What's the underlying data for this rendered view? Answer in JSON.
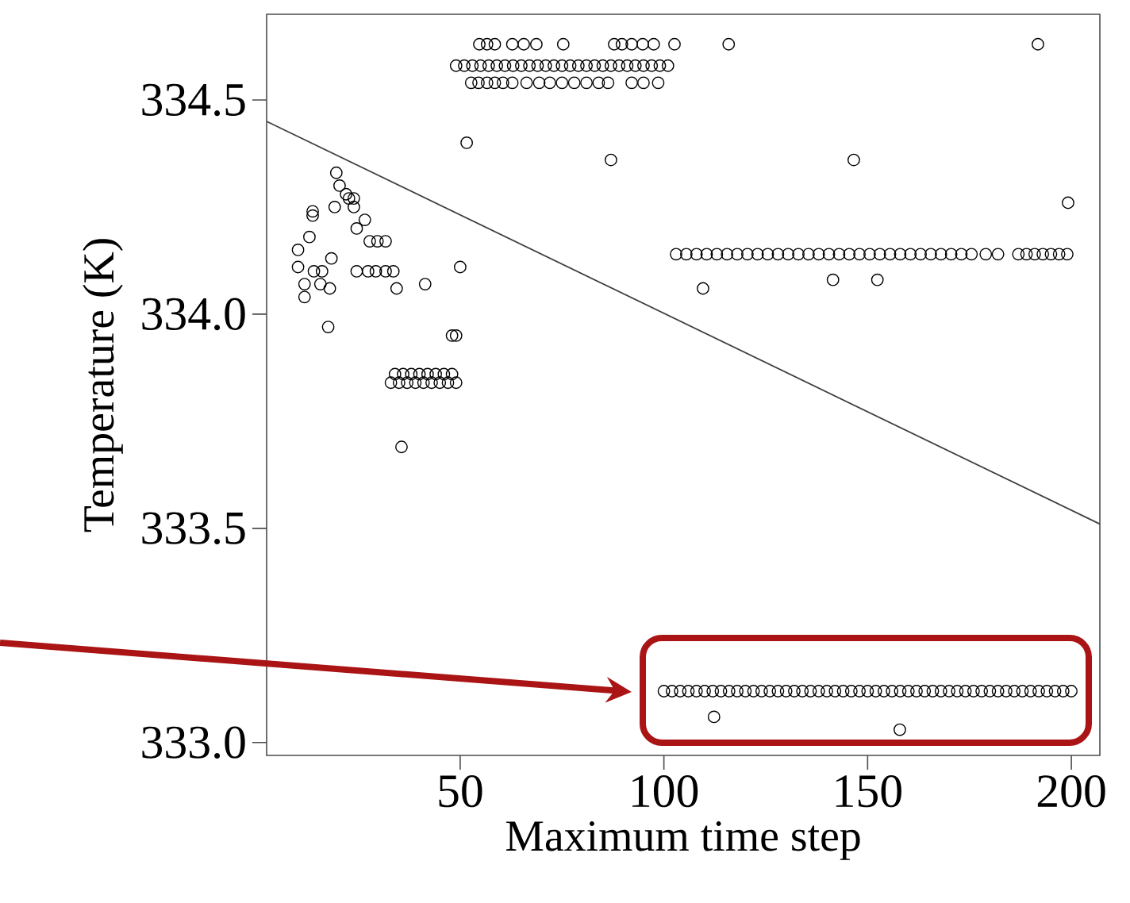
{
  "chart_data": {
    "type": "scatter",
    "xlabel": "Maximum time step",
    "ylabel": "Temperature (K)",
    "xlim": [
      2.5,
      207
    ],
    "ylim": [
      332.97,
      334.7
    ],
    "xticks": [
      50,
      100,
      150,
      200
    ],
    "yticks": [
      {
        "value": 333,
        "label": "333.0"
      },
      {
        "value": 333.5,
        "label": "333.5"
      },
      {
        "value": 334,
        "label": "334.0"
      },
      {
        "value": 334.5,
        "label": "334.5"
      }
    ],
    "marker": "circle",
    "grid": false,
    "series": [
      {
        "color": "#000000",
        "x": [
          54.7,
          56.6,
          58.5,
          62.8,
          65.6,
          68.7,
          75.3,
          87.8,
          89.7,
          92.1,
          94.8,
          97.5,
          102.6,
          115.9,
          191.8,
          49,
          51,
          53,
          55,
          57,
          59,
          61,
          63,
          65,
          67,
          69,
          71,
          73,
          75,
          77,
          79,
          81,
          83,
          85,
          87,
          89,
          91,
          93,
          95,
          97,
          99,
          101,
          52.7,
          54.5,
          56.6,
          58.5,
          60.5,
          62.8,
          66.3,
          69.4,
          72,
          75,
          78,
          81,
          84,
          86.3,
          92.1,
          95,
          98.6,
          51.6,
          87,
          146.6,
          199.2,
          109.6,
          141.5,
          152.4,
          103,
          105.5,
          108,
          110.5,
          113,
          115.5,
          118,
          120.5,
          123,
          125.5,
          128,
          130.5,
          133,
          135.5,
          138,
          140.5,
          143,
          145.5,
          148,
          150.5,
          153,
          155.5,
          158,
          160.5,
          163,
          165.5,
          168,
          170.5,
          173,
          175.5,
          179,
          182,
          187,
          189,
          191,
          193,
          195,
          197,
          199,
          100,
          102,
          104,
          106,
          108,
          110,
          112,
          114,
          116,
          118,
          120,
          122,
          124,
          126,
          128,
          130,
          132,
          134,
          136,
          138,
          140,
          142,
          144,
          146,
          148,
          150,
          152,
          154,
          156,
          158,
          160,
          162,
          164,
          166,
          168,
          170,
          172,
          174,
          176,
          178,
          180,
          182,
          184,
          186,
          188,
          190,
          192,
          194,
          196,
          198,
          200,
          112.3,
          157.9,
          19.6,
          20.4,
          22,
          22.7,
          23.9,
          23.9,
          19.2,
          13.8,
          13.8,
          26.6,
          24.6,
          13,
          27.8,
          29.7,
          31.7,
          10.2,
          10.2,
          18.4,
          14.1,
          16.1,
          24.6,
          27.4,
          29.3,
          31.7,
          33.6,
          11.8,
          15.7,
          18,
          11.8,
          34.4,
          41.4,
          50,
          17.6,
          48,
          49,
          34,
          36,
          38,
          40,
          42,
          44,
          46,
          48,
          33,
          35,
          37,
          39,
          41,
          43,
          45,
          47,
          49,
          35.6
        ],
        "values": [
          334.63,
          334.63,
          334.63,
          334.63,
          334.63,
          334.63,
          334.63,
          334.63,
          334.63,
          334.63,
          334.63,
          334.63,
          334.63,
          334.63,
          334.63,
          334.58,
          334.58,
          334.58,
          334.58,
          334.58,
          334.58,
          334.58,
          334.58,
          334.58,
          334.58,
          334.58,
          334.58,
          334.58,
          334.58,
          334.58,
          334.58,
          334.58,
          334.58,
          334.58,
          334.58,
          334.58,
          334.58,
          334.58,
          334.58,
          334.58,
          334.58,
          334.58,
          334.54,
          334.54,
          334.54,
          334.54,
          334.54,
          334.54,
          334.54,
          334.54,
          334.54,
          334.54,
          334.54,
          334.54,
          334.54,
          334.54,
          334.54,
          334.54,
          334.54,
          334.4,
          334.36,
          334.36,
          334.26,
          334.06,
          334.08,
          334.08,
          334.14,
          334.14,
          334.14,
          334.14,
          334.14,
          334.14,
          334.14,
          334.14,
          334.14,
          334.14,
          334.14,
          334.14,
          334.14,
          334.14,
          334.14,
          334.14,
          334.14,
          334.14,
          334.14,
          334.14,
          334.14,
          334.14,
          334.14,
          334.14,
          334.14,
          334.14,
          334.14,
          334.14,
          334.14,
          334.14,
          334.14,
          334.14,
          334.14,
          334.14,
          334.14,
          334.14,
          334.14,
          334.14,
          334.14,
          333.12,
          333.12,
          333.12,
          333.12,
          333.12,
          333.12,
          333.12,
          333.12,
          333.12,
          333.12,
          333.12,
          333.12,
          333.12,
          333.12,
          333.12,
          333.12,
          333.12,
          333.12,
          333.12,
          333.12,
          333.12,
          333.12,
          333.12,
          333.12,
          333.12,
          333.12,
          333.12,
          333.12,
          333.12,
          333.12,
          333.12,
          333.12,
          333.12,
          333.12,
          333.12,
          333.12,
          333.12,
          333.12,
          333.12,
          333.12,
          333.12,
          333.12,
          333.12,
          333.12,
          333.12,
          333.12,
          333.12,
          333.12,
          333.12,
          333.12,
          333.12,
          333.06,
          333.03,
          334.33,
          334.3,
          334.28,
          334.27,
          334.27,
          334.25,
          334.25,
          334.24,
          334.23,
          334.22,
          334.2,
          334.18,
          334.17,
          334.17,
          334.17,
          334.15,
          334.11,
          334.13,
          334.1,
          334.1,
          334.1,
          334.1,
          334.1,
          334.1,
          334.1,
          334.07,
          334.07,
          334.06,
          334.04,
          334.06,
          334.07,
          334.11,
          333.97,
          333.95,
          333.95,
          333.86,
          333.86,
          333.86,
          333.86,
          333.86,
          333.86,
          333.86,
          333.86,
          333.84,
          333.84,
          333.84,
          333.84,
          333.84,
          333.84,
          333.84,
          333.84,
          333.84,
          333.69
        ]
      },
      {
        "type": "line",
        "marker": "none",
        "color": "#404040",
        "x": [
          2.5,
          207
        ],
        "values": [
          334.45,
          333.51
        ]
      }
    ]
  }
}
